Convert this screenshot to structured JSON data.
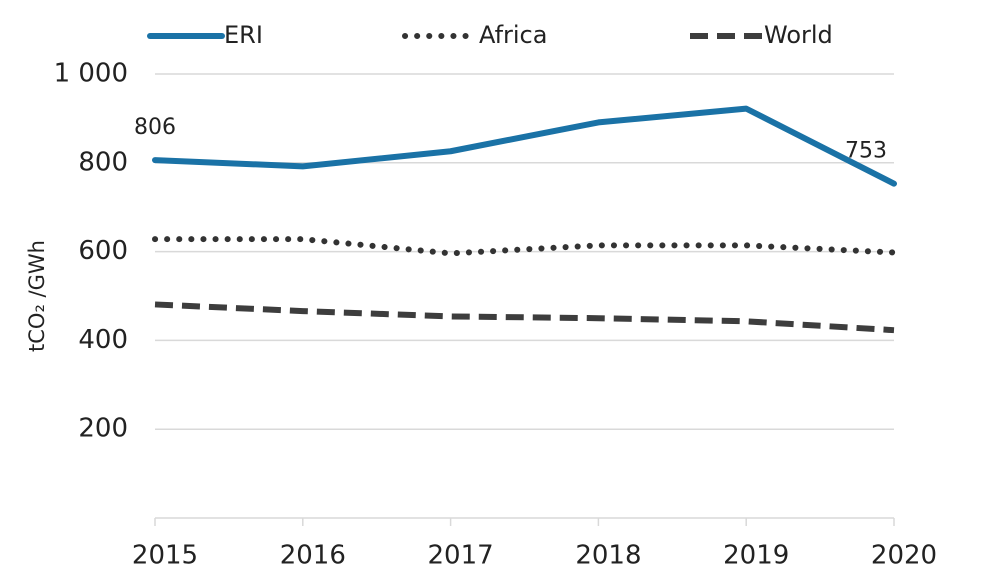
{
  "chart_data": {
    "type": "line",
    "y_label": "tCO₂ /GWh",
    "x": [
      2015,
      2016,
      2017,
      2018,
      2019,
      2020
    ],
    "xlim": [
      2015,
      2020
    ],
    "xticks": [
      2015,
      2016,
      2017,
      2018,
      2019,
      2020
    ],
    "ylim": [
      0,
      1000
    ],
    "yticks": [
      200,
      400,
      600,
      800,
      {
        "value": 1000,
        "label": "1 000"
      }
    ],
    "grid": true,
    "legend": "top",
    "series": [
      {
        "name": "ERI",
        "color": "#1a72a6",
        "style": "solid",
        "values": [
          806,
          792,
          826,
          891,
          922,
          753
        ],
        "value_labels": [
          "806",
          null,
          null,
          null,
          null,
          "753"
        ]
      },
      {
        "name": "Africa",
        "color": "#333333",
        "style": "dotted",
        "values": [
          628,
          628,
          596,
          614,
          614,
          598
        ]
      },
      {
        "name": "World",
        "color": "#3d3d3d",
        "style": "dashed",
        "values": [
          481,
          466,
          454,
          450,
          443,
          423
        ]
      }
    ]
  }
}
